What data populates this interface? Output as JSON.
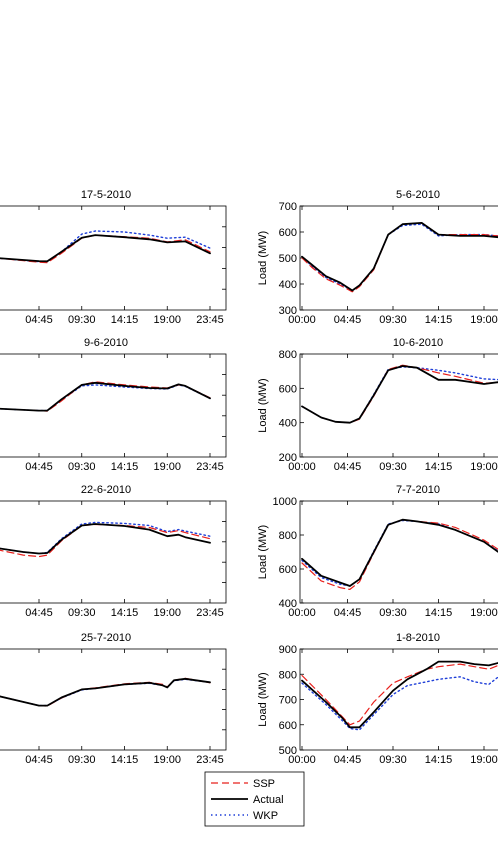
{
  "colors": {
    "ssp": "#e8201c",
    "actual": "#000000",
    "wkp": "#1f3fd8",
    "axis": "#000000"
  },
  "legend": {
    "placement": "bottom-center",
    "entries": [
      "SSP",
      "Actual",
      "WKP"
    ]
  },
  "chart_data": [
    {
      "type": "line",
      "title": "17-5-2010",
      "ylabel": "",
      "yticks": [],
      "ylim": [
        0,
        1000
      ],
      "xticks": [
        "04:45",
        "09:30",
        "14:15",
        "19:00",
        "23:45"
      ],
      "x": [
        "00:00",
        "04:45",
        "05:40",
        "07:15",
        "09:30",
        "11:00",
        "14:15",
        "17:00",
        "19:00",
        "21:00",
        "23:45"
      ],
      "series": [
        {
          "name": "Actual",
          "values": [
            500,
            470,
            468,
            560,
            695,
            720,
            700,
            680,
            650,
            660,
            545
          ]
        },
        {
          "name": "SSP",
          "values": [
            500,
            460,
            455,
            545,
            690,
            720,
            705,
            690,
            655,
            675,
            560
          ]
        },
        {
          "name": "WKP",
          "values": [
            500,
            465,
            465,
            560,
            730,
            760,
            750,
            720,
            690,
            700,
            595
          ]
        }
      ]
    },
    {
      "type": "line",
      "title": "5-6-2010",
      "ylabel": "Load (MW)",
      "yticks": [
        "300",
        "400",
        "500",
        "600",
        "700"
      ],
      "ylim": [
        300,
        700
      ],
      "xticks": [
        "00:00",
        "04:45",
        "09:30",
        "14:15",
        "19:00"
      ],
      "x": [
        "00:00",
        "01:00",
        "02:30",
        "04:00",
        "05:15",
        "06:00",
        "07:30",
        "09:00",
        "10:30",
        "12:30",
        "14:15",
        "16:30",
        "19:00",
        "20:30",
        "21:00"
      ],
      "series": [
        {
          "name": "Actual",
          "values": [
            505,
            475,
            430,
            405,
            375,
            395,
            460,
            590,
            630,
            635,
            590,
            585,
            585,
            580,
            625
          ]
        },
        {
          "name": "SSP",
          "values": [
            500,
            465,
            420,
            395,
            370,
            390,
            455,
            590,
            630,
            635,
            590,
            590,
            590,
            585,
            620
          ]
        },
        {
          "name": "WKP",
          "values": [
            505,
            470,
            425,
            400,
            375,
            395,
            460,
            590,
            625,
            630,
            585,
            590,
            590,
            585,
            615
          ]
        }
      ]
    },
    {
      "type": "line",
      "title": "9-6-2010",
      "ylabel": "",
      "yticks": [],
      "ylim": [
        0,
        1000
      ],
      "xticks": [
        "04:45",
        "09:30",
        "14:15",
        "19:00",
        "23:45"
      ],
      "x": [
        "00:00",
        "04:45",
        "05:40",
        "07:15",
        "09:30",
        "11:00",
        "14:15",
        "17:00",
        "19:00",
        "20:15",
        "21:00",
        "23:45"
      ],
      "series": [
        {
          "name": "Actual",
          "values": [
            470,
            450,
            450,
            560,
            700,
            720,
            690,
            670,
            665,
            705,
            690,
            570
          ]
        },
        {
          "name": "SSP",
          "values": [
            470,
            450,
            445,
            545,
            700,
            730,
            700,
            680,
            670,
            700,
            690,
            575
          ]
        },
        {
          "name": "WKP",
          "values": [
            470,
            450,
            450,
            555,
            690,
            700,
            680,
            665,
            660,
            700,
            685,
            570
          ]
        }
      ]
    },
    {
      "type": "line",
      "title": "10-6-2010",
      "ylabel": "Load (MW)",
      "yticks": [
        "200",
        "400",
        "600",
        "800"
      ],
      "ylim": [
        200,
        800
      ],
      "xticks": [
        "00:00",
        "04:45",
        "09:30",
        "14:15",
        "19:00"
      ],
      "x": [
        "00:00",
        "02:00",
        "03:30",
        "05:00",
        "06:00",
        "07:30",
        "09:00",
        "10:30",
        "12:00",
        "14:15",
        "16:00",
        "19:00",
        "21:00"
      ],
      "series": [
        {
          "name": "Actual",
          "values": [
            495,
            430,
            405,
            400,
            425,
            560,
            705,
            730,
            720,
            650,
            650,
            625,
            640
          ]
        },
        {
          "name": "SSP",
          "values": [
            495,
            430,
            405,
            400,
            420,
            555,
            710,
            735,
            720,
            690,
            670,
            630,
            635
          ]
        },
        {
          "name": "WKP",
          "values": [
            495,
            430,
            405,
            400,
            425,
            565,
            710,
            725,
            720,
            705,
            690,
            655,
            650
          ]
        }
      ]
    },
    {
      "type": "line",
      "title": "22-6-2010",
      "ylabel": "",
      "yticks": [],
      "ylim": [
        0,
        1000
      ],
      "xticks": [
        "04:45",
        "09:30",
        "14:15",
        "19:00",
        "23:45"
      ],
      "x": [
        "00:00",
        "03:00",
        "04:45",
        "05:40",
        "07:15",
        "09:30",
        "11:00",
        "14:15",
        "17:00",
        "19:00",
        "20:15",
        "21:00",
        "23:45"
      ],
      "series": [
        {
          "name": "Actual",
          "values": [
            540,
            500,
            485,
            490,
            620,
            760,
            775,
            755,
            720,
            655,
            670,
            645,
            590
          ]
        },
        {
          "name": "SSP",
          "values": [
            525,
            470,
            455,
            470,
            610,
            760,
            770,
            760,
            740,
            690,
            710,
            690,
            630
          ]
        },
        {
          "name": "WKP",
          "values": [
            540,
            500,
            485,
            495,
            630,
            775,
            790,
            780,
            760,
            700,
            720,
            705,
            655
          ]
        }
      ]
    },
    {
      "type": "line",
      "title": "7-7-2010",
      "ylabel": "Load (MW)",
      "yticks": [
        "400",
        "600",
        "800",
        "1000"
      ],
      "ylim": [
        400,
        1000
      ],
      "xticks": [
        "00:00",
        "04:45",
        "09:30",
        "14:15",
        "19:00"
      ],
      "x": [
        "00:00",
        "02:00",
        "04:00",
        "05:00",
        "06:00",
        "07:30",
        "09:00",
        "10:30",
        "12:00",
        "14:15",
        "16:00",
        "19:00",
        "20:30",
        "21:00"
      ],
      "series": [
        {
          "name": "Actual",
          "values": [
            660,
            560,
            520,
            500,
            540,
            700,
            860,
            890,
            880,
            860,
            830,
            760,
            700,
            730
          ]
        },
        {
          "name": "SSP",
          "values": [
            635,
            530,
            490,
            480,
            525,
            695,
            860,
            890,
            880,
            870,
            845,
            770,
            715,
            730
          ]
        },
        {
          "name": "WKP",
          "values": [
            650,
            550,
            510,
            500,
            540,
            705,
            865,
            885,
            880,
            865,
            830,
            760,
            705,
            725
          ]
        }
      ]
    },
    {
      "type": "line",
      "title": "25-7-2010",
      "ylabel": "",
      "yticks": [],
      "ylim": [
        0,
        1000
      ],
      "xticks": [
        "04:45",
        "09:30",
        "14:15",
        "19:00",
        "23:45"
      ],
      "x": [
        "00:00",
        "04:45",
        "05:40",
        "07:15",
        "09:30",
        "11:00",
        "14:15",
        "17:00",
        "18:30",
        "19:00",
        "19:45",
        "21:00",
        "23:45"
      ],
      "series": [
        {
          "name": "Actual",
          "values": [
            540,
            440,
            440,
            520,
            600,
            610,
            650,
            665,
            640,
            620,
            690,
            705,
            670
          ]
        },
        {
          "name": "SSP",
          "values": [
            540,
            440,
            435,
            515,
            600,
            615,
            655,
            670,
            650,
            625,
            690,
            710,
            665
          ]
        },
        {
          "name": "WKP",
          "values": [
            540,
            440,
            440,
            515,
            595,
            610,
            650,
            660,
            640,
            620,
            685,
            700,
            670
          ]
        }
      ]
    },
    {
      "type": "line",
      "title": "1-8-2010",
      "ylabel": "Load (MW)",
      "yticks": [
        "500",
        "600",
        "700",
        "800",
        "900"
      ],
      "ylim": [
        500,
        900
      ],
      "xticks": [
        "00:00",
        "04:45",
        "09:30",
        "14:15",
        "19:00"
      ],
      "x": [
        "00:00",
        "02:30",
        "04:15",
        "05:00",
        "06:00",
        "07:30",
        "09:30",
        "11:00",
        "13:00",
        "14:15",
        "16:30",
        "18:00",
        "19:30",
        "20:30",
        "21:00"
      ],
      "series": [
        {
          "name": "Actual",
          "values": [
            775,
            690,
            625,
            590,
            590,
            650,
            735,
            780,
            820,
            850,
            850,
            840,
            835,
            845,
            880
          ]
        },
        {
          "name": "SSP",
          "values": [
            795,
            700,
            630,
            600,
            615,
            690,
            765,
            790,
            820,
            830,
            840,
            830,
            820,
            835,
            845
          ]
        },
        {
          "name": "WKP",
          "values": [
            765,
            680,
            615,
            585,
            580,
            640,
            720,
            755,
            770,
            780,
            790,
            770,
            760,
            790,
            830
          ]
        }
      ]
    }
  ]
}
